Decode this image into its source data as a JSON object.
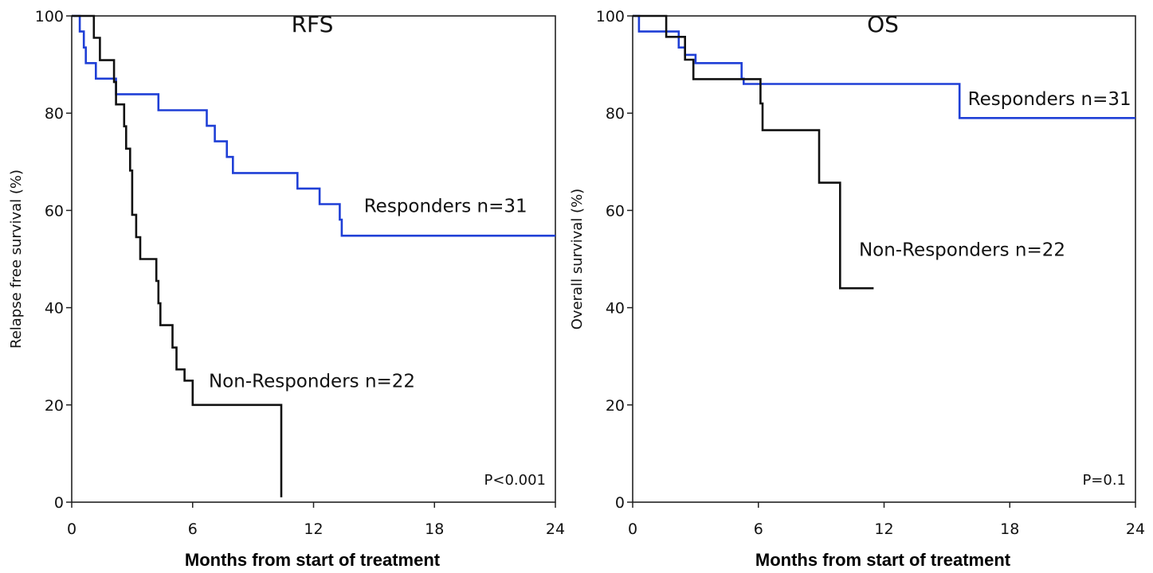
{
  "chart_data": [
    {
      "type": "line",
      "step": true,
      "title": "RFS",
      "xlabel": "Months from start of treatment",
      "ylabel": "Relapse free survival (%)",
      "xlim": [
        0,
        24
      ],
      "ylim": [
        0,
        100
      ],
      "xticks": [
        "0",
        "6",
        "12",
        "18",
        "24"
      ],
      "yticks": [
        "0",
        "20",
        "40",
        "60",
        "80",
        "100"
      ],
      "grid": false,
      "annotation": "P<0.001",
      "series": [
        {
          "name": "Responders n=31",
          "color": "#1f3fd6",
          "label_pos": [
            14.5,
            61
          ],
          "points": [
            [
              0,
              100
            ],
            [
              0.4,
              96.8
            ],
            [
              0.6,
              93.5
            ],
            [
              0.7,
              90.3
            ],
            [
              1.2,
              87.1
            ],
            [
              2.2,
              83.9
            ],
            [
              4.3,
              80.6
            ],
            [
              6.7,
              77.4
            ],
            [
              7.1,
              74.2
            ],
            [
              7.7,
              71.0
            ],
            [
              8.0,
              67.7
            ],
            [
              11.2,
              64.5
            ],
            [
              12.3,
              61.3
            ],
            [
              13.3,
              58.1
            ],
            [
              13.4,
              54.8
            ],
            [
              24,
              54.8
            ]
          ]
        },
        {
          "name": "Non-Responders n=22",
          "color": "#111111",
          "label_pos": [
            6.8,
            25
          ],
          "points": [
            [
              0,
              100
            ],
            [
              1.1,
              95.5
            ],
            [
              1.4,
              90.9
            ],
            [
              2.1,
              86.4
            ],
            [
              2.2,
              81.8
            ],
            [
              2.6,
              77.3
            ],
            [
              2.7,
              72.7
            ],
            [
              2.9,
              68.2
            ],
            [
              3.0,
              59.1
            ],
            [
              3.2,
              54.5
            ],
            [
              3.4,
              50.0
            ],
            [
              4.2,
              45.5
            ],
            [
              4.3,
              40.9
            ],
            [
              4.4,
              36.4
            ],
            [
              5.0,
              31.8
            ],
            [
              5.2,
              27.3
            ],
            [
              5.6,
              25.0
            ],
            [
              6.0,
              20.0
            ],
            [
              10.4,
              20.0
            ],
            [
              10.4,
              1.0
            ]
          ]
        }
      ]
    },
    {
      "type": "line",
      "step": true,
      "title": "OS",
      "xlabel": "Months from start of treatment",
      "ylabel": "Overall survival (%)",
      "xlim": [
        0,
        24
      ],
      "ylim": [
        0,
        100
      ],
      "xticks": [
        "0",
        "6",
        "12",
        "18",
        "24"
      ],
      "yticks": [
        "0",
        "20",
        "40",
        "60",
        "80",
        "100"
      ],
      "grid": false,
      "annotation": "P=0.1",
      "series": [
        {
          "name": "Responders n=31",
          "color": "#1f3fd6",
          "label_pos": [
            16.0,
            83
          ],
          "points": [
            [
              0,
              100
            ],
            [
              0.3,
              96.8
            ],
            [
              2.2,
              93.5
            ],
            [
              2.5,
              92.0
            ],
            [
              3.0,
              90.3
            ],
            [
              5.2,
              87.1
            ],
            [
              5.3,
              86.0
            ],
            [
              15.5,
              86.0
            ],
            [
              15.6,
              79.0
            ],
            [
              24,
              79.0
            ]
          ]
        },
        {
          "name": "Non-Responders n=22",
          "color": "#111111",
          "label_pos": [
            10.8,
            52
          ],
          "points": [
            [
              0,
              100
            ],
            [
              1.6,
              95.7
            ],
            [
              2.3,
              95.7
            ],
            [
              2.5,
              91.0
            ],
            [
              2.9,
              87.0
            ],
            [
              3.1,
              87.0
            ],
            [
              6.1,
              82.0
            ],
            [
              6.2,
              76.5
            ],
            [
              8.8,
              76.5
            ],
            [
              8.9,
              65.7
            ],
            [
              9.8,
              65.7
            ],
            [
              9.9,
              44.0
            ],
            [
              11.5,
              44.0
            ]
          ]
        }
      ]
    }
  ]
}
